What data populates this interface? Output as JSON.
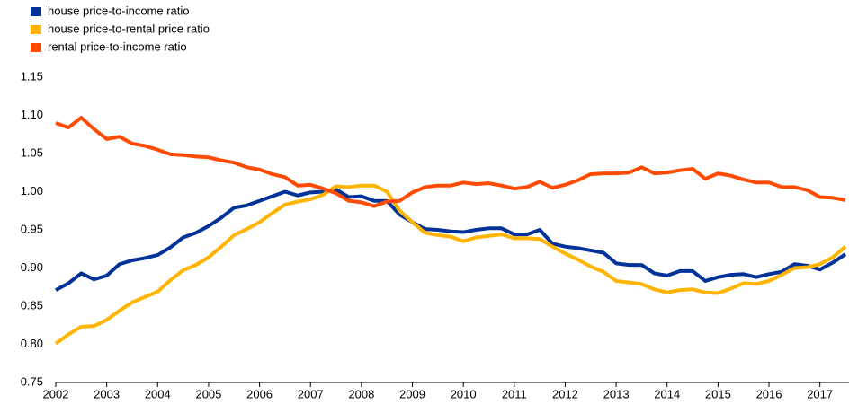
{
  "chart_data": {
    "type": "line",
    "x": [
      2002,
      2002.25,
      2002.5,
      2002.75,
      2003,
      2003.25,
      2003.5,
      2003.75,
      2004,
      2004.25,
      2004.5,
      2004.75,
      2005,
      2005.25,
      2005.5,
      2005.75,
      2006,
      2006.25,
      2006.5,
      2006.75,
      2007,
      2007.25,
      2007.5,
      2007.75,
      2008,
      2008.25,
      2008.5,
      2008.75,
      2009,
      2009.25,
      2009.5,
      2009.75,
      2010,
      2010.25,
      2010.5,
      2010.75,
      2011,
      2011.25,
      2011.5,
      2011.75,
      2012,
      2012.25,
      2012.5,
      2012.75,
      2013,
      2013.25,
      2013.5,
      2013.75,
      2014,
      2014.25,
      2014.5,
      2014.75,
      2015,
      2015.25,
      2015.5,
      2015.75,
      2016,
      2016.25,
      2016.5,
      2016.75,
      2017,
      2017.25,
      2017.5
    ],
    "series": [
      {
        "name": "house price-to-income ratio",
        "color": "#003299",
        "values": [
          0.871,
          0.88,
          0.893,
          0.885,
          0.89,
          0.905,
          0.91,
          0.913,
          0.917,
          0.927,
          0.94,
          0.946,
          0.955,
          0.966,
          0.979,
          0.982,
          0.988,
          0.994,
          1.0,
          0.995,
          0.999,
          1.0,
          1.003,
          0.993,
          0.994,
          0.988,
          0.988,
          0.97,
          0.96,
          0.951,
          0.95,
          0.948,
          0.947,
          0.95,
          0.952,
          0.952,
          0.944,
          0.944,
          0.95,
          0.932,
          0.928,
          0.926,
          0.923,
          0.92,
          0.906,
          0.904,
          0.904,
          0.893,
          0.89,
          0.896,
          0.896,
          0.883,
          0.888,
          0.891,
          0.892,
          0.888,
          0.892,
          0.895,
          0.905,
          0.903,
          0.898,
          0.907,
          0.918
        ]
      },
      {
        "name": "house price-to-rental price ratio",
        "color": "#ffb400",
        "values": [
          0.801,
          0.813,
          0.823,
          0.824,
          0.832,
          0.844,
          0.855,
          0.862,
          0.869,
          0.884,
          0.897,
          0.904,
          0.914,
          0.928,
          0.943,
          0.951,
          0.96,
          0.972,
          0.983,
          0.987,
          0.99,
          0.996,
          1.007,
          1.006,
          1.008,
          1.008,
          1.0,
          0.975,
          0.96,
          0.946,
          0.943,
          0.941,
          0.935,
          0.94,
          0.942,
          0.944,
          0.939,
          0.939,
          0.938,
          0.928,
          0.919,
          0.911,
          0.902,
          0.895,
          0.883,
          0.881,
          0.879,
          0.872,
          0.868,
          0.871,
          0.872,
          0.868,
          0.867,
          0.873,
          0.88,
          0.879,
          0.883,
          0.891,
          0.9,
          0.901,
          0.905,
          0.914,
          0.928
        ]
      },
      {
        "name": "rental price-to-income ratio",
        "color": "#ff4b00",
        "values": [
          1.09,
          1.084,
          1.097,
          1.082,
          1.069,
          1.072,
          1.063,
          1.06,
          1.055,
          1.049,
          1.048,
          1.046,
          1.045,
          1.041,
          1.038,
          1.032,
          1.029,
          1.023,
          1.019,
          1.008,
          1.009,
          1.004,
          0.998,
          0.988,
          0.986,
          0.981,
          0.987,
          0.988,
          0.999,
          1.006,
          1.008,
          1.008,
          1.012,
          1.01,
          1.011,
          1.008,
          1.004,
          1.006,
          1.013,
          1.005,
          1.009,
          1.015,
          1.023,
          1.024,
          1.024,
          1.025,
          1.032,
          1.024,
          1.025,
          1.028,
          1.03,
          1.017,
          1.024,
          1.021,
          1.016,
          1.012,
          1.012,
          1.006,
          1.006,
          1.002,
          0.993,
          0.992,
          0.989
        ]
      }
    ],
    "xlim": [
      2002,
      2017.5
    ],
    "xticks": [
      2002,
      2003,
      2004,
      2005,
      2006,
      2007,
      2008,
      2009,
      2010,
      2011,
      2012,
      2013,
      2014,
      2015,
      2016,
      2017
    ],
    "ylim": [
      0.75,
      1.15
    ],
    "yticks": [
      {
        "value": 0.75,
        "label": "0.75"
      },
      {
        "value": 0.8,
        "label": "0.80"
      },
      0.85,
      {
        "value": 0.9,
        "label": "0.90"
      },
      0.95,
      {
        "value": 1.0,
        "label": "1.00"
      },
      1.05,
      {
        "value": 1.1,
        "label": "1.10"
      },
      1.15
    ],
    "grid": false,
    "legend": "top-left"
  }
}
